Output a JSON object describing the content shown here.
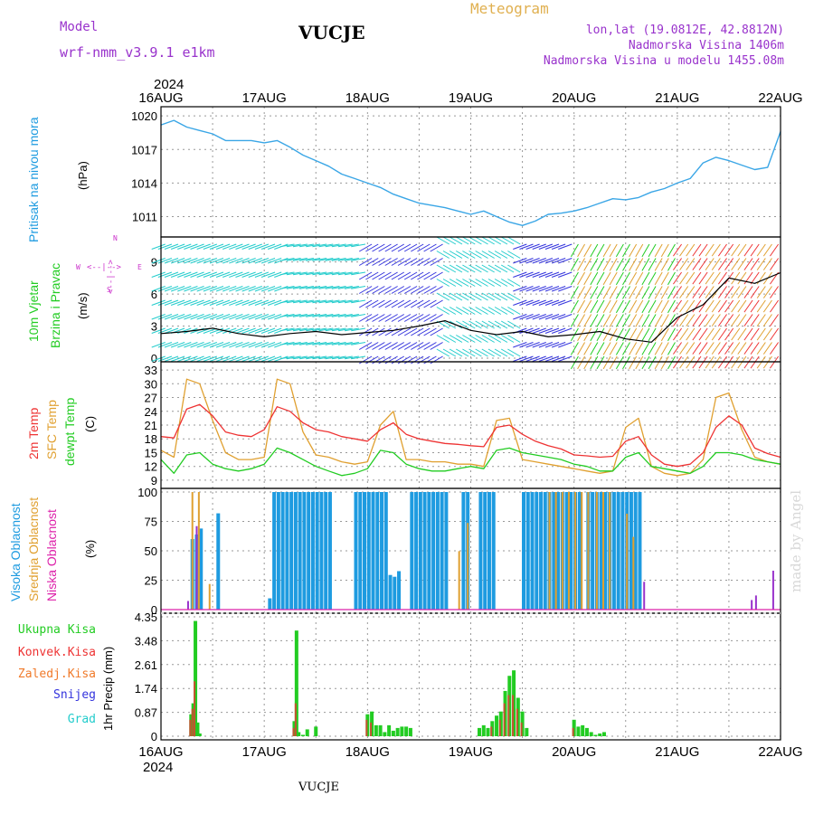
{
  "header": {
    "model_label": "Model",
    "model_name": "wrf-nmm_v3.9.1  e1km",
    "station": "VUCJE",
    "chart_type": "Meteogram",
    "lonlat": "lon,lat (19.0812E, 42.8812N)",
    "elev": "Nadmorska Visina 1406m",
    "elev_model": "Nadmorska Visina u modelu 1455.08m",
    "footer_station": "VUCJE",
    "credit": "made by Angel"
  },
  "time_axis": {
    "year": "2024",
    "labels": [
      "16AUG",
      "17AUG",
      "18AUG",
      "19AUG",
      "20AUG",
      "21AUG",
      "22AUG"
    ]
  },
  "colors": {
    "pressure": "#3aa6e6",
    "green": "#22cc22",
    "red": "#ee3333",
    "orange": "#e0a030",
    "blue": "#3333dd",
    "cyan": "#22cccc",
    "magenta": "#dd22aa",
    "purple": "#9933cc",
    "sky": "#1e9be0"
  },
  "panels": {
    "pressure": {
      "title": "Pritisak na nivou mora",
      "unit": "(hPa)",
      "ticks": [
        "1020",
        "1017",
        "1014",
        "1011"
      ]
    },
    "wind": {
      "title1": "10m Vjetar",
      "title2": "Brzina i Pravac",
      "unit": "(m/s)",
      "ticks": [
        "9",
        "6",
        "3",
        "0"
      ],
      "compass_n": "N",
      "compass_w": "W",
      "compass_e": "E",
      "compass_s": "S",
      "compass_arrow_v": "<--|-->",
      "compass_arrow_h": "<--|-->"
    },
    "temp": {
      "title1": "2m Temp",
      "title2": "SFC Temp",
      "title3": "dewpt Temp",
      "unit": "(C)",
      "ticks": [
        "33",
        "30",
        "27",
        "24",
        "21",
        "18",
        "15",
        "12",
        "9"
      ]
    },
    "cloud": {
      "title1": "Visoka Oblacnost",
      "title2": "Srednja Oblacnost",
      "title3": "Niska Oblacnost",
      "unit": "(%)",
      "ticks": [
        "100",
        "75",
        "50",
        "25",
        "0"
      ]
    },
    "precip": {
      "legend": [
        "Ukupna Kisa",
        "Konvek.Kisa",
        "Zaledj.Kisa",
        "Snijeg",
        "Grad"
      ],
      "unit": "1hr Precip (mm)",
      "ticks": [
        "4.35",
        "3.48",
        "2.61",
        "1.74",
        "0.87",
        "0"
      ]
    }
  },
  "chart_data": [
    {
      "type": "line",
      "title": "Pritisak na nivou mora",
      "ylabel": "(hPa)",
      "ylim": [
        1009.5,
        1020.5
      ],
      "x_hours": [
        0,
        3,
        6,
        9,
        12,
        15,
        18,
        21,
        24,
        27,
        30,
        33,
        36,
        39,
        42,
        45,
        48,
        51,
        54,
        57,
        60,
        63,
        66,
        69,
        72,
        75,
        78,
        81,
        84,
        87,
        90,
        93,
        96,
        99,
        102,
        105,
        108,
        111,
        114,
        117,
        120,
        123,
        126,
        129,
        132,
        135,
        138,
        141,
        144
      ],
      "series": [
        {
          "name": "Pritisak na nivou mora",
          "values": [
            1019.2,
            1019.6,
            1019.0,
            1018.7,
            1018.4,
            1017.8,
            1017.8,
            1017.8,
            1017.6,
            1017.8,
            1017.2,
            1016.5,
            1016.0,
            1015.5,
            1014.8,
            1014.4,
            1014.0,
            1013.6,
            1013.0,
            1012.6,
            1012.2,
            1012.0,
            1011.8,
            1011.5,
            1011.2,
            1011.5,
            1011.0,
            1010.5,
            1010.2,
            1010.6,
            1011.2,
            1011.3,
            1011.5,
            1011.8,
            1012.2,
            1012.6,
            1012.5,
            1012.7,
            1013.2,
            1013.5,
            1014.0,
            1014.4,
            1015.8,
            1016.3,
            1016.0,
            1015.6,
            1015.2,
            1015.4,
            1018.6
          ]
        }
      ]
    },
    {
      "type": "line",
      "title": "10m Vjetar Brzina i Pravac",
      "ylabel": "(m/s)",
      "ylim": [
        0,
        11
      ],
      "x_hours": [
        0,
        6,
        12,
        18,
        24,
        30,
        36,
        42,
        48,
        54,
        60,
        66,
        72,
        78,
        84,
        90,
        96,
        102,
        108,
        114,
        120,
        126,
        132,
        138,
        144
      ],
      "series": [
        {
          "name": "10m Vjetar",
          "values": [
            2.3,
            2.5,
            2.8,
            2.3,
            2.0,
            2.3,
            2.5,
            2.2,
            2.4,
            2.6,
            3.0,
            3.5,
            2.6,
            2.2,
            2.5,
            2.0,
            2.2,
            2.5,
            1.8,
            1.5,
            3.8,
            5.0,
            7.5,
            7.0,
            8.0
          ]
        }
      ]
    },
    {
      "type": "line",
      "title": "2m Temp / SFC Temp / dewpt Temp",
      "ylabel": "(C)",
      "ylim": [
        8,
        34
      ],
      "x_hours": [
        0,
        3,
        6,
        9,
        12,
        15,
        18,
        21,
        24,
        27,
        30,
        33,
        36,
        39,
        42,
        45,
        48,
        51,
        54,
        57,
        60,
        63,
        66,
        69,
        72,
        75,
        78,
        81,
        84,
        87,
        90,
        93,
        96,
        99,
        102,
        105,
        108,
        111,
        114,
        117,
        120,
        123,
        126,
        129,
        132,
        135,
        138,
        141,
        144
      ],
      "series": [
        {
          "name": "2m Temp",
          "values": [
            18.5,
            18.2,
            24.5,
            25.5,
            23.0,
            19.5,
            18.8,
            18.5,
            20.0,
            25.0,
            24.0,
            21.5,
            20.0,
            19.5,
            18.5,
            18.0,
            17.5,
            20.0,
            21.5,
            19.0,
            18.0,
            17.5,
            17.0,
            16.8,
            16.5,
            16.3,
            20.5,
            21.0,
            19.0,
            17.5,
            16.5,
            15.8,
            14.5,
            14.3,
            14.0,
            14.2,
            17.5,
            18.5,
            14.5,
            12.5,
            12.0,
            12.5,
            15.0,
            20.5,
            23.0,
            21.0,
            16.0,
            14.8,
            14.0
          ]
        },
        {
          "name": "SFC Temp",
          "values": [
            15.5,
            14.0,
            31.0,
            30.0,
            22.0,
            15.0,
            13.5,
            13.5,
            14.0,
            31.0,
            30.0,
            19.5,
            14.5,
            14.0,
            13.0,
            12.5,
            13.0,
            21.0,
            24.0,
            13.5,
            13.5,
            13.0,
            13.0,
            12.5,
            12.5,
            12.0,
            22.0,
            22.5,
            13.5,
            13.0,
            12.5,
            12.0,
            11.5,
            11.0,
            10.5,
            11.0,
            20.5,
            22.5,
            12.0,
            10.5,
            10.0,
            10.5,
            13.5,
            27.0,
            28.0,
            20.0,
            14.0,
            13.0,
            12.5
          ]
        },
        {
          "name": "dewpt Temp",
          "values": [
            13.5,
            10.5,
            14.5,
            15.0,
            12.5,
            11.5,
            11.0,
            11.5,
            12.5,
            16.0,
            15.0,
            13.5,
            12.0,
            11.0,
            10.0,
            10.5,
            11.5,
            15.5,
            15.0,
            12.5,
            11.5,
            11.0,
            11.0,
            11.5,
            12.0,
            11.5,
            15.5,
            16.0,
            15.0,
            14.5,
            14.0,
            13.5,
            12.5,
            12.0,
            11.0,
            11.0,
            14.0,
            15.0,
            12.0,
            11.5,
            11.0,
            10.5,
            12.0,
            15.0,
            15.0,
            14.5,
            13.5,
            13.0,
            12.5
          ]
        }
      ]
    },
    {
      "type": "bar",
      "title": "Oblacnost",
      "ylabel": "(%)",
      "ylim": [
        0,
        100
      ],
      "series": [
        {
          "name": "Visoka Oblacnost",
          "segments": [
            [
              7,
              10,
              80
            ],
            [
              13,
              14,
              82
            ],
            [
              25,
              26,
              12
            ],
            [
              26,
              37,
              100
            ],
            [
              37,
              40,
              100
            ],
            [
              45,
              50,
              100
            ],
            [
              50,
              53,
              100
            ],
            [
              53,
              56,
              34
            ],
            [
              58,
              64,
              100
            ],
            [
              64,
              67,
              100
            ],
            [
              70,
              72,
              100
            ],
            [
              74,
              78,
              100
            ],
            [
              84,
              86,
              100
            ],
            [
              86,
              98,
              100
            ],
            [
              99,
              104,
              100
            ],
            [
              104,
              112,
              100
            ]
          ]
        },
        {
          "name": "Srednja Oblacnost",
          "segments": [
            [
              7,
              10,
              100
            ],
            [
              11,
              12,
              30
            ],
            [
              69,
              70,
              70
            ],
            [
              71,
              72,
              85
            ],
            [
              90,
              100,
              100
            ],
            [
              101,
              105,
              100
            ],
            [
              108,
              111,
              85
            ]
          ]
        },
        {
          "name": "Niska Oblacnost",
          "segments": [
            [
              6,
              7,
              10
            ],
            [
              8,
              9,
              80
            ],
            [
              112,
              113,
              28
            ],
            [
              137,
              138,
              10
            ],
            [
              138,
              139,
              15
            ],
            [
              142,
              143,
              36
            ]
          ]
        }
      ]
    },
    {
      "type": "bar",
      "title": "1hr Precip",
      "ylabel": "1hr Precip (mm)",
      "ylim": [
        0,
        4.35
      ],
      "series": [
        {
          "name": "Ukupna Kisa",
          "points": [
            [
              7,
              0.8
            ],
            [
              7.5,
              1.2
            ],
            [
              8,
              4.2
            ],
            [
              8.5,
              0.5
            ],
            [
              9,
              0.1
            ],
            [
              31,
              0.55
            ],
            [
              31.5,
              3.85
            ],
            [
              32,
              0.15
            ],
            [
              33,
              0.05
            ],
            [
              34,
              0.25
            ],
            [
              36,
              0.35
            ],
            [
              48,
              0.8
            ],
            [
              49,
              0.9
            ],
            [
              50,
              0.4
            ],
            [
              51,
              0.4
            ],
            [
              52,
              0.15
            ],
            [
              53,
              0.4
            ],
            [
              54,
              0.2
            ],
            [
              55,
              0.3
            ],
            [
              56,
              0.35
            ],
            [
              57,
              0.35
            ],
            [
              58,
              0.3
            ],
            [
              74,
              0.3
            ],
            [
              75,
              0.4
            ],
            [
              76,
              0.3
            ],
            [
              77,
              0.55
            ],
            [
              78,
              0.75
            ],
            [
              79,
              0.9
            ],
            [
              80,
              1.65
            ],
            [
              81,
              2.2
            ],
            [
              82,
              2.4
            ],
            [
              83,
              1.4
            ],
            [
              84,
              0.9
            ],
            [
              85,
              0.3
            ],
            [
              96,
              0.6
            ],
            [
              97,
              0.35
            ],
            [
              98,
              0.4
            ],
            [
              99,
              0.3
            ],
            [
              100,
              0.15
            ],
            [
              101,
              0.05
            ],
            [
              102,
              0.1
            ],
            [
              103,
              0.15
            ]
          ]
        },
        {
          "name": "Konvek.Kisa",
          "points": [
            [
              7,
              0.6
            ],
            [
              7.5,
              1.0
            ],
            [
              8,
              2.0
            ],
            [
              31,
              0.3
            ],
            [
              31.5,
              1.2
            ],
            [
              48,
              0.6
            ],
            [
              49,
              0.5
            ],
            [
              77,
              0.35
            ],
            [
              79,
              0.6
            ],
            [
              80,
              1.2
            ],
            [
              81,
              1.5
            ],
            [
              82,
              1.5
            ],
            [
              83,
              1.0
            ],
            [
              84,
              0.5
            ],
            [
              96,
              0.3
            ]
          ]
        }
      ]
    }
  ]
}
